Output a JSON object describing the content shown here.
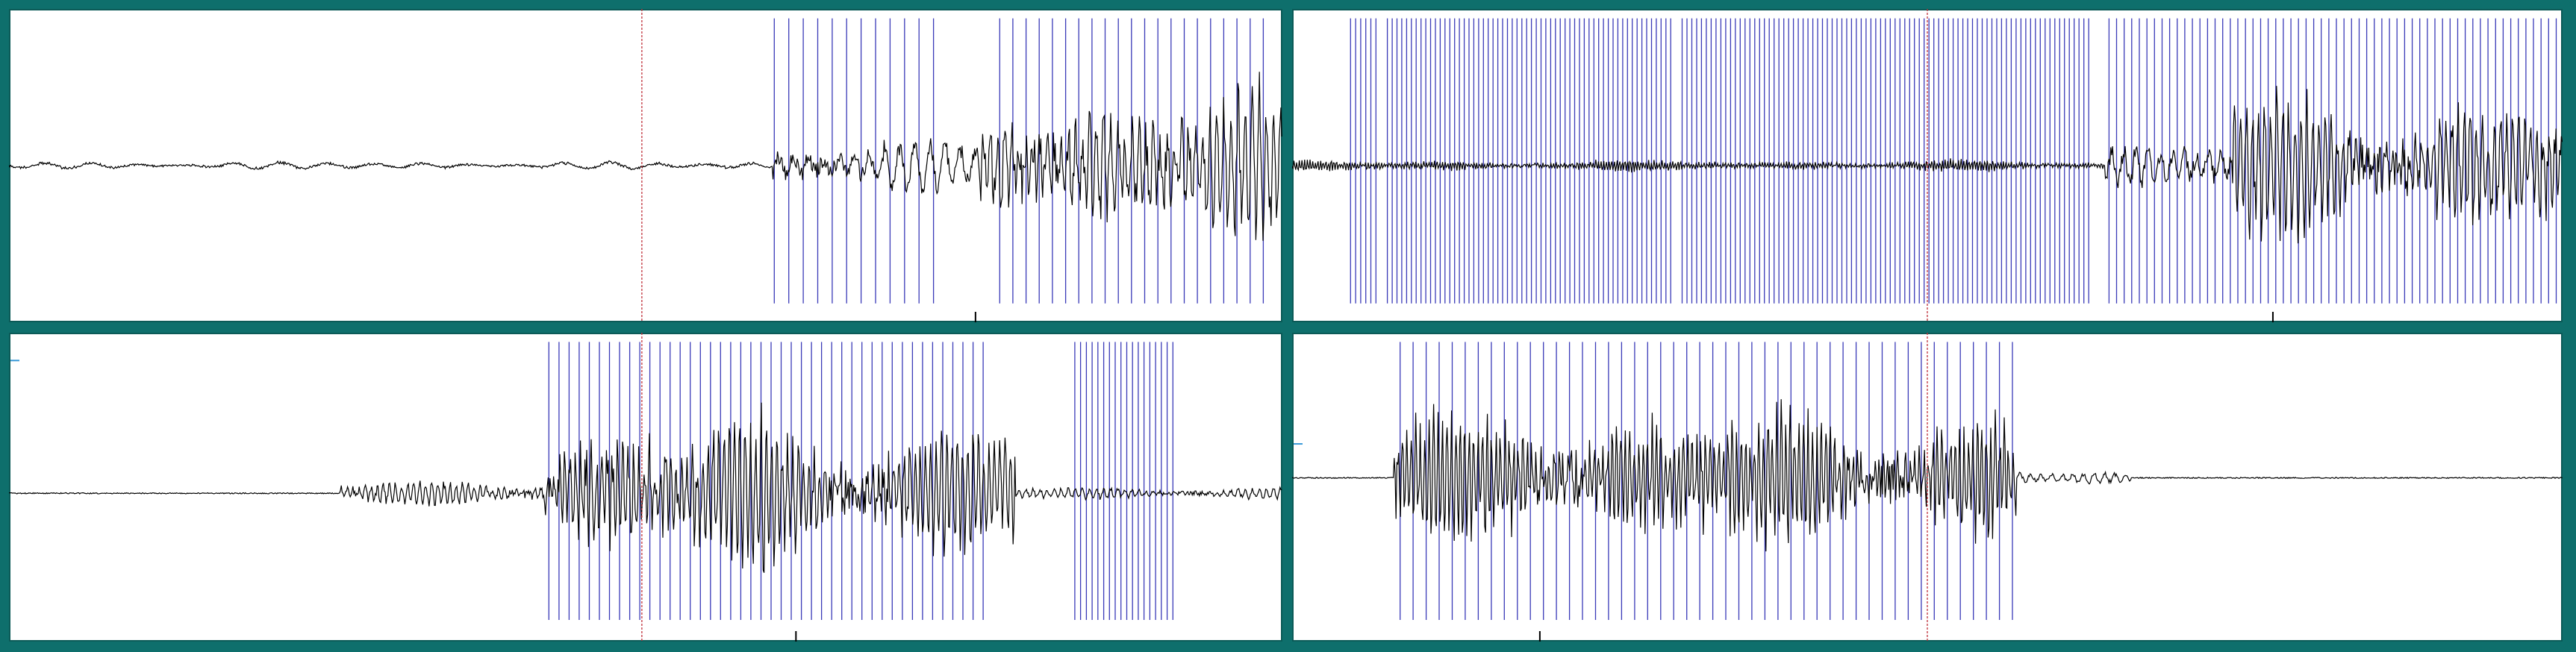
{
  "colors": {
    "background": "#0e6f6c",
    "panel": "#ffffff",
    "waveform": "#000000",
    "pitch_marks": "#3a3ab8",
    "cursor": "#c0303a",
    "axis_tick": "#000000",
    "side_marker": "#3a9ad8"
  },
  "panels": [
    {
      "id": "panel-1",
      "cursor_frac": 0.497,
      "axis_tick_frac": 0.759,
      "pitch_mark_groups": [
        {
          "start": 0.601,
          "end": 0.726,
          "count": 12
        },
        {
          "start": 0.778,
          "end": 0.985,
          "count": 21
        }
      ],
      "wave_segments": [
        {
          "start": 0.0,
          "end": 0.6,
          "amp": 0.05,
          "freq": 9
        },
        {
          "start": 0.6,
          "end": 0.76,
          "amp": 0.32,
          "freq": 28
        },
        {
          "start": 0.76,
          "end": 1.0,
          "amp": 0.95,
          "freq": 60
        }
      ]
    },
    {
      "id": "panel-2",
      "cursor_frac": 0.5,
      "axis_tick_frac": 0.772,
      "pitch_mark_groups": [
        {
          "start": 0.046,
          "end": 0.066,
          "count": 6
        },
        {
          "start": 0.075,
          "end": 0.298,
          "count": 60
        },
        {
          "start": 0.307,
          "end": 0.627,
          "count": 85
        },
        {
          "start": 0.643,
          "end": 0.995,
          "count": 60
        }
      ],
      "wave_segments": [
        {
          "start": 0.0,
          "end": 0.64,
          "amp": 0.07,
          "freq": 160
        },
        {
          "start": 0.64,
          "end": 0.74,
          "amp": 0.35,
          "freq": 35
        },
        {
          "start": 0.74,
          "end": 1.0,
          "amp": 0.92,
          "freq": 70
        }
      ]
    },
    {
      "id": "panel-3",
      "cursor_frac": 0.497,
      "axis_tick_frac": 0.618,
      "pitch_mark_groups": [
        {
          "start": 0.424,
          "end": 0.765,
          "count": 44
        },
        {
          "start": 0.837,
          "end": 0.914,
          "count": 18
        }
      ],
      "wave_segments": [
        {
          "start": 0.0,
          "end": 0.26,
          "amp": 0.0,
          "freq": 0
        },
        {
          "start": 0.26,
          "end": 0.42,
          "amp": 0.16,
          "freq": 70
        },
        {
          "start": 0.42,
          "end": 0.79,
          "amp": 0.95,
          "freq": 80
        },
        {
          "start": 0.79,
          "end": 1.0,
          "amp": 0.08,
          "freq": 60
        }
      ]
    },
    {
      "id": "panel-4",
      "cursor_frac": 0.5,
      "axis_tick_frac": 0.195,
      "pitch_mark_groups": [
        {
          "start": 0.085,
          "end": 0.567,
          "count": 48
        }
      ],
      "wave_segments": [
        {
          "start": 0.0,
          "end": 0.08,
          "amp": 0.0,
          "freq": 0
        },
        {
          "start": 0.08,
          "end": 0.57,
          "amp": 0.9,
          "freq": 95
        },
        {
          "start": 0.57,
          "end": 0.66,
          "amp": 0.08,
          "freq": 40
        },
        {
          "start": 0.66,
          "end": 1.0,
          "amp": 0.0,
          "freq": 0
        }
      ]
    }
  ]
}
